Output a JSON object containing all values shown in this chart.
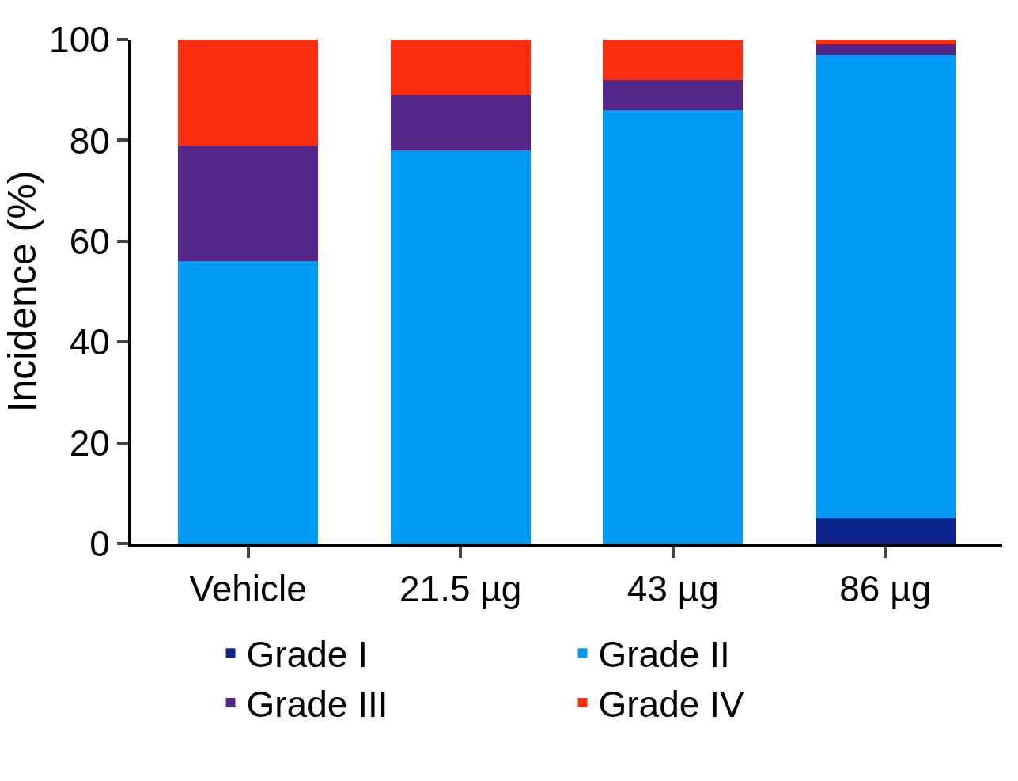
{
  "chart_data": {
    "type": "bar",
    "stacked": true,
    "ylabel": "Incidence (%)",
    "categories": [
      "Vehicle",
      "21.5 µg",
      "43 µg",
      "86 µg"
    ],
    "series": [
      {
        "name": "Grade I",
        "color": "#0c238c",
        "values": [
          0,
          0,
          0,
          5
        ]
      },
      {
        "name": "Grade II",
        "color": "#0299f5",
        "values": [
          56,
          78,
          86,
          92
        ]
      },
      {
        "name": "Grade III",
        "color": "#53268a",
        "values": [
          23,
          11,
          6,
          2
        ]
      },
      {
        "name": "Grade IV",
        "color": "#fe2f10",
        "values": [
          21,
          11,
          8,
          1
        ]
      }
    ],
    "ylim": [
      0,
      100
    ],
    "yticks": [
      0,
      20,
      40,
      60,
      80,
      100
    ],
    "legend": "bottom"
  }
}
